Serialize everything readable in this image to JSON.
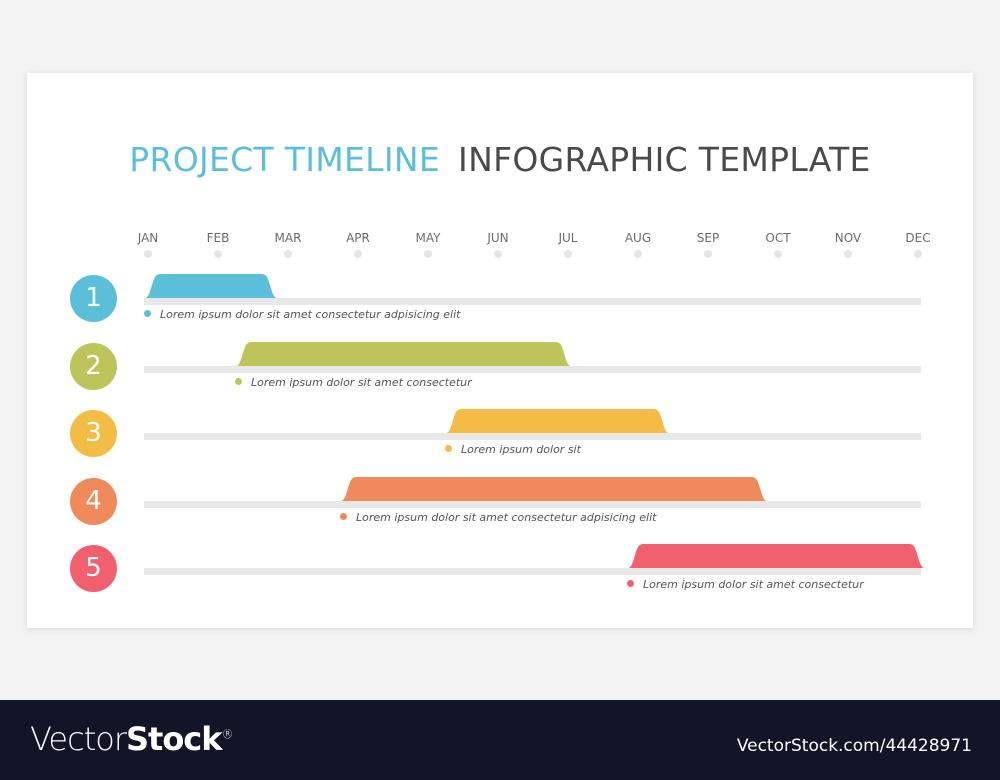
{
  "title": {
    "part1": "PROJECT TIMELINE",
    "part2": "INFOGRAPHIC TEMPLATE"
  },
  "months": [
    "JAN",
    "FEB",
    "MAR",
    "APR",
    "MAY",
    "JUN",
    "JUL",
    "AUG",
    "SEP",
    "OCT",
    "NOV",
    "DEC"
  ],
  "tasks": [
    {
      "number": "1",
      "label": "Lorem ipsum dolor sit amet consectetur adpisicing elit",
      "color": "#5bbfd9",
      "start_month": 0,
      "end_month": 1.8
    },
    {
      "number": "2",
      "label": "Lorem ipsum dolor sit amet consectetur",
      "color": "#bcc45a",
      "start_month": 1.3,
      "end_month": 6.0
    },
    {
      "number": "3",
      "label": "Lorem ipsum dolor sit",
      "color": "#f3bd45",
      "start_month": 4.3,
      "end_month": 7.4
    },
    {
      "number": "4",
      "label": "Lorem ipsum dolor sit amet consectetur adpisicing elit",
      "color": "#f08a5a",
      "start_month": 2.8,
      "end_month": 8.8
    },
    {
      "number": "5",
      "label": "Lorem ipsum dolor sit amet consectetur",
      "color": "#f0606e",
      "start_month": 6.9,
      "end_month": 11.05
    }
  ],
  "footer": {
    "logo_light": "Vector",
    "logo_bold": "Stock",
    "logo_mark": "®",
    "reference": "VectorStock.com/44428971"
  }
}
